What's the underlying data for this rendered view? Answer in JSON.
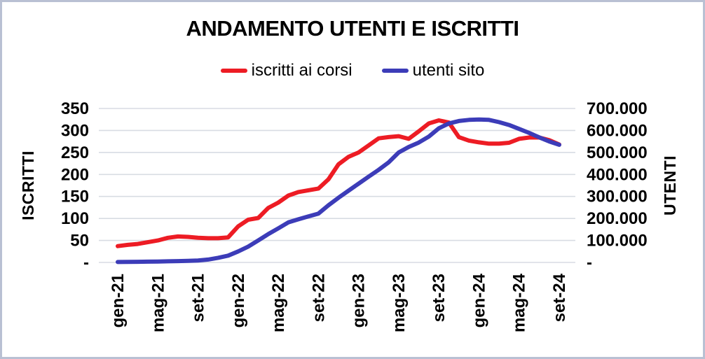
{
  "frame": {
    "border_color": "#b9c0d3",
    "background": "#ffffff"
  },
  "chart_data": {
    "type": "line",
    "title": "ANDAMENTO UTENTI E ISCRITTI",
    "grid": true,
    "grid_color": "#d8dce3",
    "legend_position": "top",
    "x": [
      "gen-21",
      "feb-21",
      "mar-21",
      "apr-21",
      "mag-21",
      "giu-21",
      "lug-21",
      "ago-21",
      "set-21",
      "ott-21",
      "nov-21",
      "dic-21",
      "gen-22",
      "feb-22",
      "mar-22",
      "apr-22",
      "mag-22",
      "giu-22",
      "lug-22",
      "ago-22",
      "set-22",
      "ott-22",
      "nov-22",
      "dic-22",
      "gen-23",
      "feb-23",
      "mar-23",
      "apr-23",
      "mag-23",
      "giu-23",
      "lug-23",
      "ago-23",
      "set-23",
      "ott-23",
      "nov-23",
      "dic-23",
      "gen-24",
      "feb-24",
      "mar-24",
      "apr-24",
      "mag-24",
      "giu-24",
      "lug-24",
      "ago-24",
      "set-24"
    ],
    "x_tick_labels": [
      "gen-21",
      "mag-21",
      "set-21",
      "gen-22",
      "mag-22",
      "set-22",
      "gen-23",
      "mag-23",
      "set-23",
      "gen-24",
      "mag-24",
      "set-24"
    ],
    "x_tick_every": 4,
    "series": [
      {
        "name": "iscritti ai corsi",
        "axis": "left",
        "color": "#ed1c24",
        "values": [
          37,
          40,
          42,
          46,
          50,
          56,
          59,
          58,
          56,
          55,
          55,
          57,
          82,
          97,
          101,
          124,
          136,
          152,
          160,
          164,
          168,
          189,
          223,
          240,
          250,
          266,
          282,
          285,
          287,
          281,
          298,
          316,
          323,
          318,
          285,
          277,
          273,
          270,
          270,
          272,
          281,
          284,
          284,
          278,
          268
        ]
      },
      {
        "name": "utenti sito",
        "axis": "right",
        "color": "#3c3cb8",
        "values": [
          2000,
          2500,
          3000,
          3500,
          4000,
          5000,
          6000,
          7000,
          9000,
          13000,
          21000,
          31000,
          50000,
          72000,
          100000,
          129000,
          155000,
          182000,
          196000,
          209000,
          222000,
          260000,
          294000,
          326000,
          358000,
          390000,
          421000,
          455000,
          500000,
          525000,
          545000,
          572000,
          610000,
          632000,
          643000,
          648000,
          650000,
          648000,
          638000,
          625000,
          607000,
          589000,
          569000,
          550000,
          535000
        ]
      }
    ],
    "left_axis": {
      "label": "ISCRITTI",
      "min": 0,
      "max": 350,
      "step": 50,
      "tick_labels": [
        "-",
        "50",
        "100",
        "150",
        "200",
        "250",
        "300",
        "350"
      ]
    },
    "right_axis": {
      "label": "UTENTI",
      "min": 0,
      "max": 700000,
      "step": 100000,
      "tick_labels": [
        "-",
        "100.000",
        "200.000",
        "300.000",
        "400.000",
        "500.000",
        "600.000",
        "700.000"
      ]
    }
  }
}
